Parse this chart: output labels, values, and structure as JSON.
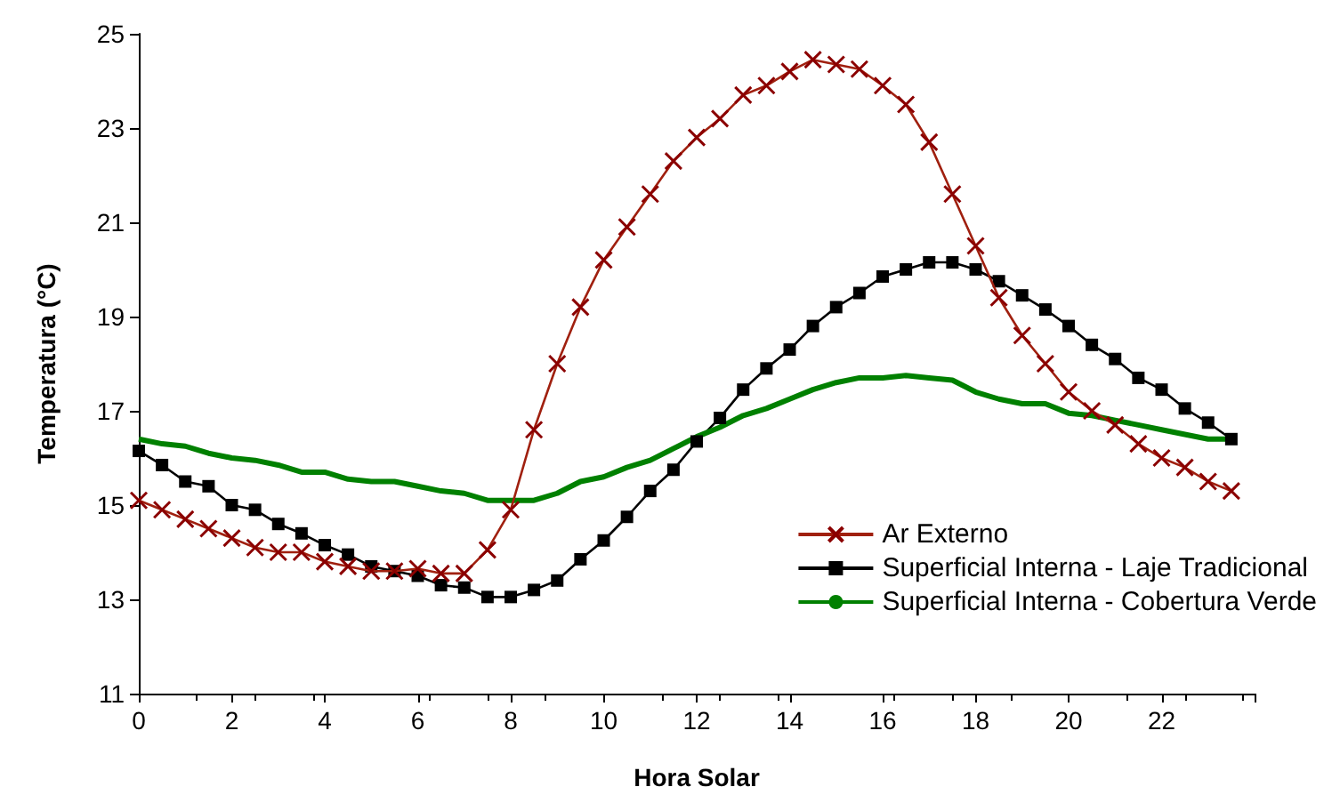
{
  "chart_data": {
    "type": "line",
    "xlabel": "Hora Solar",
    "ylabel": "Temperatura (°C)",
    "x": [
      0,
      0.5,
      1,
      1.5,
      2,
      2.5,
      3,
      3.5,
      4,
      4.5,
      5,
      5.5,
      6,
      6.5,
      7,
      7.5,
      8,
      8.5,
      9,
      9.5,
      10,
      10.5,
      11,
      11.5,
      12,
      12.5,
      13,
      13.5,
      14,
      14.5,
      15,
      15.5,
      16,
      16.5,
      17,
      17.5,
      18,
      18.5,
      19,
      19.5,
      20,
      20.5,
      21,
      21.5,
      22,
      22.5,
      23,
      23.5
    ],
    "series": [
      {
        "name": "Ar Externo",
        "color": "#a0200f",
        "marker": "cross",
        "values": [
          15.1,
          14.9,
          14.7,
          14.5,
          14.3,
          14.1,
          14.0,
          14.0,
          13.8,
          13.7,
          13.6,
          13.6,
          13.65,
          13.55,
          13.55,
          14.05,
          14.9,
          16.6,
          18.0,
          19.2,
          20.2,
          20.9,
          21.6,
          22.3,
          22.8,
          23.2,
          23.7,
          23.9,
          24.2,
          24.45,
          24.35,
          24.25,
          23.9,
          23.5,
          22.7,
          21.6,
          20.5,
          19.4,
          18.6,
          18.0,
          17.4,
          17.0,
          16.7,
          16.3,
          16.0,
          15.8,
          15.5,
          15.3
        ]
      },
      {
        "name": "Superficial Interna - Laje Tradicional",
        "color": "#000000",
        "marker": "square",
        "values": [
          16.15,
          15.85,
          15.5,
          15.4,
          15.0,
          14.9,
          14.6,
          14.4,
          14.15,
          13.95,
          13.7,
          13.6,
          13.5,
          13.3,
          13.25,
          13.05,
          13.05,
          13.2,
          13.4,
          13.85,
          14.25,
          14.75,
          15.3,
          15.75,
          16.35,
          16.85,
          17.45,
          17.9,
          18.3,
          18.8,
          19.2,
          19.5,
          19.85,
          20.0,
          20.15,
          20.15,
          20.0,
          19.75,
          19.45,
          19.15,
          18.8,
          18.4,
          18.1,
          17.7,
          17.45,
          17.05,
          16.75,
          16.4
        ]
      },
      {
        "name": "Superficial Interna - Cobertura Verde",
        "color": "#008000",
        "marker": "none",
        "values": [
          16.4,
          16.3,
          16.25,
          16.1,
          16.0,
          15.95,
          15.85,
          15.7,
          15.7,
          15.55,
          15.5,
          15.5,
          15.4,
          15.3,
          15.25,
          15.1,
          15.1,
          15.1,
          15.25,
          15.5,
          15.6,
          15.8,
          15.95,
          16.2,
          16.45,
          16.65,
          16.9,
          17.05,
          17.25,
          17.45,
          17.6,
          17.7,
          17.7,
          17.75,
          17.7,
          17.65,
          17.4,
          17.25,
          17.15,
          17.15,
          16.95,
          16.9,
          16.8,
          16.7,
          16.6,
          16.5,
          16.4,
          16.4
        ]
      }
    ],
    "xlim": [
      0,
      24
    ],
    "xticks": [
      0,
      2,
      4,
      6,
      8,
      10,
      12,
      14,
      16,
      18,
      20,
      22,
      {
        "value": 24,
        "label": null
      }
    ],
    "ylim": [
      11,
      25
    ],
    "yticks": [
      11,
      13,
      15,
      17,
      19,
      21,
      23,
      25
    ],
    "grid": false,
    "legend": "bottom right"
  }
}
